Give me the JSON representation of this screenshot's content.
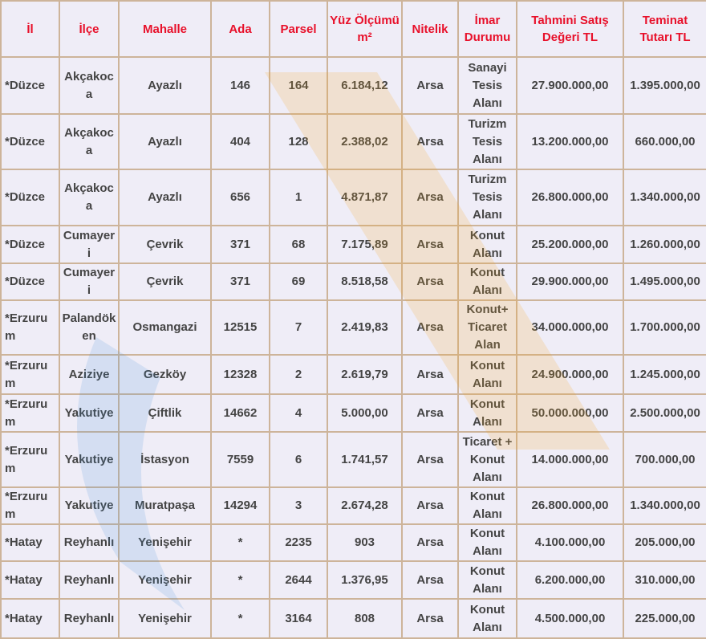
{
  "table": {
    "header": [
      "İl",
      "İlçe",
      "Mahalle",
      "Ada",
      "Parsel",
      "Yüz Ölçümü m²",
      "Nitelik",
      "İmar Durumu",
      "Tahmini Satış Değeri TL",
      "Teminat Tutarı TL"
    ],
    "rows": [
      [
        "*Düzce",
        "Akçakoca",
        "Ayazlı",
        "146",
        "164",
        "6.184,12",
        "Arsa",
        "Sanayi Tesis Alanı",
        "27.900.000,00",
        "1.395.000,00"
      ],
      [
        "*Düzce",
        "Akçakoca",
        "Ayazlı",
        "404",
        "128",
        "2.388,02",
        "Arsa",
        "Turizm Tesis Alanı",
        "13.200.000,00",
        "660.000,00"
      ],
      [
        "*Düzce",
        "Akçakoca",
        "Ayazlı",
        "656",
        "1",
        "4.871,87",
        "Arsa",
        "Turizm Tesis Alanı",
        "26.800.000,00",
        "1.340.000,00"
      ],
      [
        "*Düzce",
        "Cumayeri",
        "Çevrik",
        "371",
        "68",
        "7.175,89",
        "Arsa",
        "Konut Alanı",
        "25.200.000,00",
        "1.260.000,00"
      ],
      [
        "*Düzce",
        "Cumayeri",
        "Çevrik",
        "371",
        "69",
        "8.518,58",
        "Arsa",
        "Konut Alanı",
        "29.900.000,00",
        "1.495.000,00"
      ],
      [
        "*Erzurum",
        "Palandöken",
        "Osmangazi",
        "12515",
        "7",
        "2.419,83",
        "Arsa",
        "Konut+ Ticaret Alan",
        "34.000.000,00",
        "1.700.000,00"
      ],
      [
        "*Erzurum",
        "Aziziye",
        "Gezköy",
        "12328",
        "2",
        "2.619,79",
        "Arsa",
        "Konut Alanı",
        "24.900.000,00",
        "1.245.000,00"
      ],
      [
        "*Erzurum",
        "Yakutiye",
        "Çiftlik",
        "14662",
        "4",
        "5.000,00",
        "Arsa",
        "Konut Alanı",
        "50.000.000,00",
        "2.500.000,00"
      ],
      [
        "*Erzurum",
        "Yakutiye",
        "İstasyon",
        "7559",
        "6",
        "1.741,57",
        "Arsa",
        "Ticaret + Konut Alanı",
        "14.000.000,00",
        "700.000,00"
      ],
      [
        "*Erzurum",
        "Yakutiye",
        "Muratpaşa",
        "14294",
        "3",
        "2.674,28",
        "Arsa",
        "Konut Alanı",
        "26.800.000,00",
        "1.340.000,00"
      ],
      [
        "*Hatay",
        "Reyhanlı",
        "Yenişehir",
        "*",
        "2235",
        "903",
        "Arsa",
        "Konut Alanı",
        "4.100.000,00",
        "205.000,00"
      ],
      [
        "*Hatay",
        "Reyhanlı",
        "Yenişehir",
        "*",
        "2644",
        "1.376,95",
        "Arsa",
        "Konut Alanı",
        "6.200.000,00",
        "310.000,00"
      ],
      [
        "*Hatay",
        "Reyhanlı",
        "Yenişehir",
        "*",
        "3164",
        "808",
        "Arsa",
        "Konut Alanı",
        "4.500.000,00",
        "225.000,00"
      ]
    ]
  }
}
